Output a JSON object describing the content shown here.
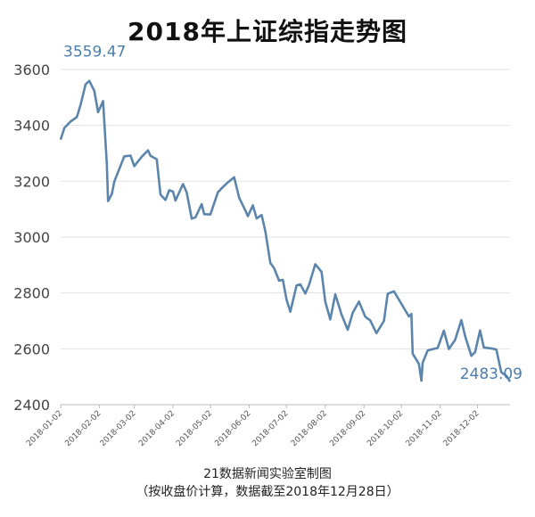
{
  "chart_data": {
    "type": "line",
    "title": "2018年上证综指走势图",
    "xlabel": "",
    "ylabel": "",
    "ylim": [
      2400,
      3600
    ],
    "yticks": [
      2400,
      2600,
      2800,
      3000,
      3200,
      3400,
      3600
    ],
    "grid": true,
    "legend": "none",
    "series_color": "#5b85ad",
    "x_tick_labels": [
      "2018-01-02",
      "2018-02-02",
      "2018-03-02",
      "2018-04-02",
      "2018-05-02",
      "2018-06-02",
      "2018-07-02",
      "2018-08-02",
      "2018-09-02",
      "2018-10-02",
      "2018-11-02",
      "2018-12-02"
    ],
    "x_range": [
      "2018-01-02",
      "2018-12-28"
    ],
    "series": [
      {
        "x": [
          "2018-01-02",
          "2018-01-05",
          "2018-01-10",
          "2018-01-15",
          "2018-01-18",
          "2018-01-22",
          "2018-01-25",
          "2018-01-29",
          "2018-02-01",
          "2018-02-05",
          "2018-02-08",
          "2018-02-09",
          "2018-02-12",
          "2018-02-14",
          "2018-02-22",
          "2018-02-27",
          "2018-03-02",
          "2018-03-08",
          "2018-03-13",
          "2018-03-15",
          "2018-03-20",
          "2018-03-23",
          "2018-03-27",
          "2018-03-30",
          "2018-04-02",
          "2018-04-04",
          "2018-04-10",
          "2018-04-13",
          "2018-04-17",
          "2018-04-20",
          "2018-04-25",
          "2018-04-27",
          "2018-05-02",
          "2018-05-08",
          "2018-05-11",
          "2018-05-15",
          "2018-05-21",
          "2018-05-25",
          "2018-05-30",
          "2018-06-01",
          "2018-06-05",
          "2018-06-08",
          "2018-06-12",
          "2018-06-15",
          "2018-06-19",
          "2018-06-22",
          "2018-06-26",
          "2018-06-29",
          "2018-07-02",
          "2018-07-05",
          "2018-07-10",
          "2018-07-13",
          "2018-07-17",
          "2018-07-20",
          "2018-07-25",
          "2018-07-30",
          "2018-08-02",
          "2018-08-06",
          "2018-08-10",
          "2018-08-15",
          "2018-08-20",
          "2018-08-24",
          "2018-08-29",
          "2018-09-03",
          "2018-09-07",
          "2018-09-12",
          "2018-09-18",
          "2018-09-21",
          "2018-09-26",
          "2018-10-08",
          "2018-10-10",
          "2018-10-11",
          "2018-10-16",
          "2018-10-18",
          "2018-10-19",
          "2018-10-23",
          "2018-10-26",
          "2018-10-31",
          "2018-11-05",
          "2018-11-09",
          "2018-11-14",
          "2018-11-19",
          "2018-11-22",
          "2018-11-27",
          "2018-11-30",
          "2018-12-04",
          "2018-12-07",
          "2018-12-12",
          "2018-12-17",
          "2018-12-21",
          "2018-12-25",
          "2018-12-28"
        ],
        "values": [
          3349,
          3391,
          3414,
          3430,
          3474,
          3547,
          3559.47,
          3523,
          3447,
          3487,
          3262,
          3129,
          3154,
          3199,
          3289,
          3292,
          3254,
          3288,
          3311,
          3291,
          3279,
          3152,
          3133,
          3168,
          3163,
          3131,
          3190,
          3160,
          3066,
          3071,
          3118,
          3082,
          3081,
          3161,
          3175,
          3192,
          3214,
          3141,
          3095,
          3075,
          3114,
          3067,
          3079,
          3021,
          2907,
          2889,
          2844,
          2847,
          2776,
          2733,
          2827,
          2831,
          2798,
          2829,
          2903,
          2876,
          2769,
          2705,
          2795,
          2723,
          2668,
          2729,
          2769,
          2715,
          2702,
          2656,
          2700,
          2797,
          2806,
          2716,
          2725,
          2583,
          2546,
          2486,
          2550,
          2594,
          2598,
          2603,
          2665,
          2599,
          2632,
          2703,
          2646,
          2575,
          2588,
          2666,
          2605,
          2602,
          2598,
          2516,
          2504,
          2483.09
        ]
      }
    ],
    "annotations": [
      {
        "text": "3559.47",
        "x": "2018-01-25",
        "y": 3559.47
      },
      {
        "text": "2483.09",
        "x": "2018-12-28",
        "y": 2483.09
      }
    ],
    "source_line1": "21数据新闻实验室制图",
    "source_line2": "（按收盘价计算，数据截至2018年12月28日）"
  }
}
